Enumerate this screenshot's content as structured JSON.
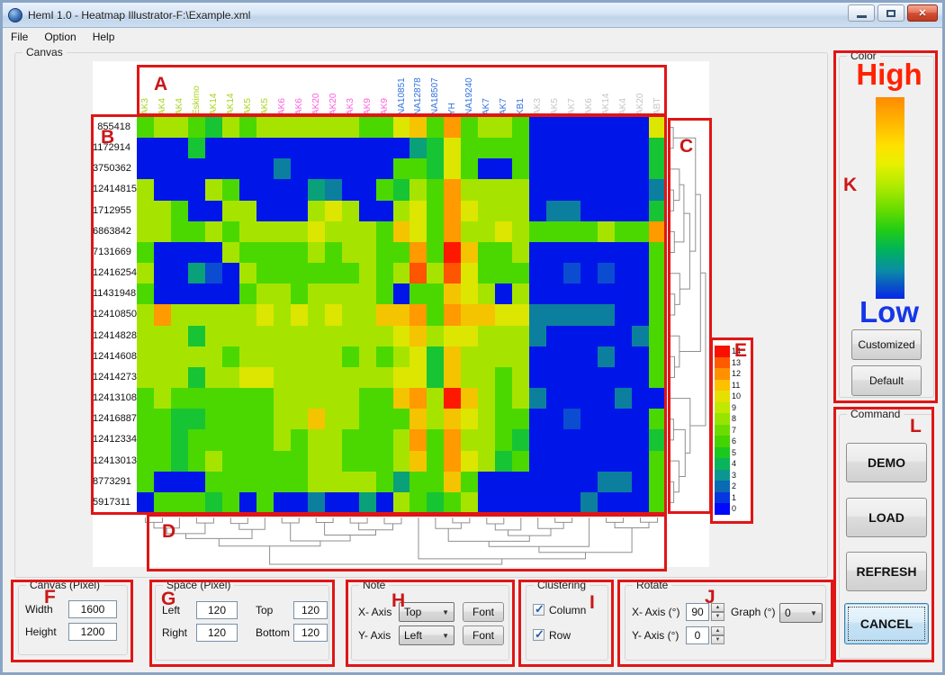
{
  "window": {
    "title": "HemI 1.0 - Heatmap Illustrator-F:\\Example.xml",
    "app_icon": "gps-logo",
    "controls": [
      "minimize",
      "maximize",
      "close"
    ]
  },
  "menu": {
    "items": [
      "File",
      "Option",
      "Help"
    ]
  },
  "canvas": {
    "group_label": "Canvas",
    "col_labels": [
      {
        "text": "AK3",
        "group": "green"
      },
      {
        "text": "AK4",
        "group": "green"
      },
      {
        "text": "AK4",
        "group": "green"
      },
      {
        "text": "Eskimo",
        "group": "green"
      },
      {
        "text": "AK14",
        "group": "green"
      },
      {
        "text": "AK14",
        "group": "green"
      },
      {
        "text": "AK5",
        "group": "green"
      },
      {
        "text": "AK5",
        "group": "green"
      },
      {
        "text": "AK6",
        "group": "magenta"
      },
      {
        "text": "AK6",
        "group": "magenta"
      },
      {
        "text": "AK20",
        "group": "magenta"
      },
      {
        "text": "AK20",
        "group": "magenta"
      },
      {
        "text": "AK3",
        "group": "magenta"
      },
      {
        "text": "AK9",
        "group": "magenta"
      },
      {
        "text": "AK9",
        "group": "magenta"
      },
      {
        "text": "NA10851",
        "group": "blue"
      },
      {
        "text": "NA12878",
        "group": "blue"
      },
      {
        "text": "NA18507",
        "group": "blue"
      },
      {
        "text": "YH",
        "group": "blue"
      },
      {
        "text": "NA19240",
        "group": "blue"
      },
      {
        "text": "AK7",
        "group": "blue"
      },
      {
        "text": "AK7",
        "group": "blue"
      },
      {
        "text": "KB1",
        "group": "blue"
      },
      {
        "text": "AK3",
        "group": "gray"
      },
      {
        "text": "AK5",
        "group": "gray"
      },
      {
        "text": "AK7",
        "group": "gray"
      },
      {
        "text": "AK6",
        "group": "gray"
      },
      {
        "text": "AK14",
        "group": "gray"
      },
      {
        "text": "AK4",
        "group": "gray"
      },
      {
        "text": "AK20",
        "group": "gray"
      },
      {
        "text": "ABT",
        "group": "gray"
      }
    ],
    "row_labels": [
      "855418",
      "1172914",
      "3750362",
      "12414815",
      "1712955",
      "6863842",
      "7131669",
      "12416254",
      "11431948",
      "12410850",
      "12414828",
      "12414608",
      "12414273",
      "12413108",
      "12416887",
      "12412334",
      "12413013",
      "8773291",
      "5917311"
    ],
    "heatmap": {
      "palette": {
        "b": "#0016e8",
        "d": "#0b4cd0",
        "t": "#0d7f9e",
        "e": "#0aa079",
        "G": "#17c434",
        "g": "#4ad800",
        "y": "#a6e400",
        "Y": "#dce600",
        "o": "#f4c400",
        "O": "#ff9a00",
        "r": "#ff5400",
        "R": "#ff1800"
      },
      "rows": [
        "gyygGygyyyyyyggYogOgyygbbbbbbbY",
        "bbbGbbbbbbbbbbbbeGYggggbbbbbbbG",
        "bbbbbbbbtbbbbbbggGYgbbgbbbbbbbG",
        "ybbbygbbbbetbbgGygOyyyybbbbbbbt",
        "yygbbyybbbyYybbyYgOYyyybttbbbbG",
        "yyggygyyyyYyyygoYgOyyYyggggyggO",
        "gbbbbyggggygyyggOgRoggybbbbbbbg",
        "ybbedbyggggggygyryrYgggbbdbdbbg",
        "gbbbbbgyygyyyygbggoYybybbbbbbbg",
        "yOyyyyyYyYyYyyooOgOooYYtttttbbg",
        "yyyGyyyyyyyyyyyYoyYYyyytbbbbbtg",
        "yyyyygyyyyyygygyYGoyyyybbbbtbbg",
        "yyyGyyYYyyyyyyyYYGoyygybbbbbbbg",
        "gyggggggyyyyyggoOyRoygytbbbbtbb",
        "ggGGggggyyoyygggoyoYyggbbdbbbbg",
        "ggGgggggygyygggyOgOyygGbbbbbbbG",
        "ggGgygggggyygggyogOYyGgbbbbbbbg",
        "gbbbggggggyyyygeggogbbbbbbbttbg",
        "bgggGgbgbbtbbebygGgybbbbbbtbbbg"
      ]
    },
    "legend": {
      "values": [
        "14",
        "13",
        "12",
        "11",
        "10",
        "9",
        "8",
        "7",
        "6",
        "5",
        "4",
        "3",
        "2",
        "1",
        "0"
      ],
      "colors": [
        "#f81000",
        "#ff5a00",
        "#ff9000",
        "#ffc000",
        "#e6e000",
        "#c0e800",
        "#96e400",
        "#6cdc00",
        "#44d400",
        "#1cc81e",
        "#0ab45a",
        "#0c9692",
        "#0a6ab4",
        "#0636e0",
        "#0208fa"
      ]
    },
    "dendrograms": {
      "column_leaves": 31,
      "row_leaves": 19
    }
  },
  "annotations": {
    "A": "A",
    "B": "B",
    "C": "C",
    "D": "D",
    "E": "E",
    "F": "F",
    "G": "G",
    "H": "H",
    "I": "I",
    "J": "J",
    "K": "K",
    "L": "L"
  },
  "color_panel": {
    "label": "Color",
    "high": "High",
    "low": "Low",
    "high_color": "#ff2200",
    "low_color": "#1536e8",
    "customized_label": "Customized",
    "default_label": "Default"
  },
  "command_panel": {
    "label": "Command",
    "demo": "DEMO",
    "load": "LOAD",
    "refresh": "REFRESH",
    "cancel": "CANCEL"
  },
  "panels": {
    "canvas_pixel": {
      "label": "Canvas (Pixel)",
      "width_label": "Width",
      "width_value": "1600",
      "height_label": "Height",
      "height_value": "1200"
    },
    "space_pixel": {
      "label": "Space (Pixel)",
      "left_label": "Left",
      "left_value": "120",
      "top_label": "Top",
      "top_value": "120",
      "right_label": "Right",
      "right_value": "120",
      "bottom_label": "Bottom",
      "bottom_value": "120"
    },
    "note": {
      "label": "Note",
      "x_label": "X- Axis",
      "x_value": "Top",
      "x_font": "Font",
      "y_label": "Y- Axis",
      "y_value": "Left",
      "y_font": "Font"
    },
    "clustering": {
      "label": "Clustering",
      "column_label": "Column",
      "column_checked": true,
      "row_label": "Row",
      "row_checked": true
    },
    "rotate": {
      "label": "Rotate",
      "x_label": "X- Axis (°)",
      "x_value": "90",
      "graph_label": "Graph (°)",
      "graph_value": "0",
      "y_label": "Y- Axis (°)",
      "y_value": "0"
    }
  }
}
